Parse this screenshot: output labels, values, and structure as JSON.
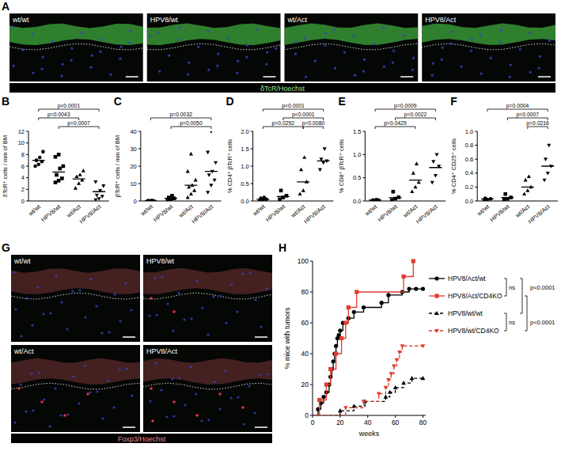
{
  "images": [
    {
      "title": "A",
      "panels": [
        "wt/wt",
        "HPV8/wt",
        "wt/Act",
        "HPV8/Act"
      ],
      "caption": "δTcR/Hoechst"
    },
    {
      "title": "G",
      "panels": [
        "wt/wt",
        "HPV8/wt",
        "wt/Act",
        "HPV8/Act"
      ],
      "caption": "Foxp3/Hoechst"
    }
  ],
  "chart_data": [
    {
      "type": "dot",
      "title": "B",
      "y_label": "δTcR⁺ cells / mm of BM",
      "color": "#000000",
      "ylim": [
        0,
        12
      ],
      "yticks": [
        0,
        2,
        4,
        6,
        8,
        10,
        12
      ],
      "series": [
        {
          "name": "wt/wt",
          "marker": "circle",
          "values": [
            6.0,
            6.3,
            6.8,
            7.0,
            7.5,
            8.5
          ],
          "mean": 7.0
        },
        {
          "name": "HPV8/wt",
          "marker": "square",
          "values": [
            3.2,
            3.5,
            3.9,
            4.5,
            5.6,
            6.0,
            7.6,
            8.0
          ],
          "mean": 5.0
        },
        {
          "name": "wt/Act",
          "marker": "triangle",
          "values": [
            2.2,
            3.0,
            3.6,
            4.2,
            4.5,
            5.2
          ],
          "mean": 3.8
        },
        {
          "name": "HPV8/Act",
          "marker": "triangle-down",
          "values": [
            0.2,
            0.4,
            0.8,
            1.0,
            1.8,
            2.6,
            3.3
          ],
          "mean": 1.6
        }
      ],
      "comparisons": [
        {
          "label": "p<0.0001",
          "from": 0,
          "to": 3
        },
        {
          "label": "p=0.0043",
          "from": 0,
          "to": 2
        },
        {
          "label": "p=0.0007",
          "from": 1,
          "to": 3
        }
      ]
    },
    {
      "type": "dot",
      "title": "C",
      "y_label": "βTcR⁺ cells / mm of BM",
      "color": "#000000",
      "ylim": [
        0,
        40
      ],
      "yticks": [
        0,
        10,
        20,
        30,
        40
      ],
      "series": [
        {
          "name": "wt/wt",
          "marker": "circle",
          "values": [
            0,
            0,
            0,
            0.2,
            0.3
          ],
          "mean": 0.1
        },
        {
          "name": "HPV8/wt",
          "marker": "square",
          "values": [
            0.5,
            1,
            1.5,
            2,
            3
          ],
          "mean": 1.5
        },
        {
          "name": "wt/Act",
          "marker": "triangle",
          "values": [
            2,
            4,
            6,
            8,
            9,
            12,
            17,
            27
          ],
          "mean": 9
        },
        {
          "name": "HPV8/Act",
          "marker": "triangle-down",
          "values": [
            5,
            9,
            12,
            15,
            17,
            22,
            28,
            40
          ],
          "mean": 17
        }
      ],
      "comparisons": [
        {
          "label": "p=0.0032",
          "from": 0,
          "to": 3
        },
        {
          "label": "p=0.0050",
          "from": 1,
          "to": 3
        }
      ]
    },
    {
      "type": "dot",
      "title": "D",
      "y_label": "% CD4⁺ βTcR⁺ cells",
      "color": "#000000",
      "ylim": [
        0,
        2
      ],
      "yticks": [
        {
          "value": 0,
          "label": "0.0"
        },
        0.5,
        {
          "value": 1,
          "label": "1.0"
        },
        1.5,
        {
          "value": 2,
          "label": "2.0"
        }
      ],
      "series": [
        {
          "name": "wt/wt",
          "marker": "circle",
          "values": [
            0.0,
            0.02,
            0.05,
            0.08,
            0.1
          ],
          "mean": 0.05
        },
        {
          "name": "HPV8/wt",
          "marker": "square",
          "values": [
            0.05,
            0.1,
            0.15,
            0.3
          ],
          "mean": 0.13
        },
        {
          "name": "wt/Act",
          "marker": "triangle",
          "values": [
            0.2,
            0.3,
            0.55,
            0.9,
            1.25
          ],
          "mean": 0.55
        },
        {
          "name": "HPV8/Act",
          "marker": "triangle-down",
          "values": [
            0.9,
            1.1,
            1.15,
            1.2,
            1.5
          ],
          "mean": 1.15
        }
      ],
      "comparisons": [
        {
          "label": "p<0.0001",
          "from": 0,
          "to": 3
        },
        {
          "label": "p<0.0001",
          "from": 1,
          "to": 3
        },
        {
          "label": "p=0.0292",
          "from": 0,
          "to": 2
        },
        {
          "label": "p=0.0080",
          "from": 2,
          "to": 3
        }
      ]
    },
    {
      "type": "dot",
      "title": "E",
      "y_label": "% CD8⁺ βTcR⁺ cells",
      "color": "#000000",
      "ylim": [
        0,
        1.5
      ],
      "yticks": [
        {
          "value": 0,
          "label": "0.0"
        },
        0.5,
        {
          "value": 1,
          "label": "1.0"
        },
        1.5
      ],
      "series": [
        {
          "name": "wt/wt",
          "marker": "circle",
          "values": [
            0.0,
            0.01,
            0.02,
            0.02,
            0.03
          ],
          "mean": 0.02
        },
        {
          "name": "HPV8/wt",
          "marker": "square",
          "values": [
            0.02,
            0.05,
            0.08,
            0.2
          ],
          "mean": 0.07
        },
        {
          "name": "wt/Act",
          "marker": "triangle",
          "values": [
            0.2,
            0.3,
            0.4,
            0.6,
            0.8
          ],
          "mean": 0.45
        },
        {
          "name": "HPV8/Act",
          "marker": "triangle-down",
          "values": [
            0.4,
            0.55,
            0.75,
            0.85,
            1.0
          ],
          "mean": 0.72
        }
      ],
      "comparisons": [
        {
          "label": "p=0.0009",
          "from": 0,
          "to": 3
        },
        {
          "label": "p=0.0022",
          "from": 1,
          "to": 3
        },
        {
          "label": "p=0.0429",
          "from": 0,
          "to": 2
        }
      ]
    },
    {
      "type": "dot",
      "title": "F",
      "y_label": "% CD4⁺ CD25⁺ cells",
      "color": "#000000",
      "ylim": [
        0,
        1
      ],
      "yticks": [
        {
          "value": 0,
          "label": "0.0"
        },
        0.2,
        0.4,
        0.6,
        0.8,
        {
          "value": 1,
          "label": "1.0"
        }
      ],
      "series": [
        {
          "name": "wt/wt",
          "marker": "circle",
          "values": [
            0,
            0.02,
            0.03,
            0.04
          ],
          "mean": 0.03
        },
        {
          "name": "HPV8/wt",
          "marker": "square",
          "values": [
            0.02,
            0.03,
            0.05,
            0.1
          ],
          "mean": 0.05
        },
        {
          "name": "wt/Act",
          "marker": "triangle",
          "values": [
            0.1,
            0.15,
            0.2,
            0.3,
            0.35
          ],
          "mean": 0.2
        },
        {
          "name": "HPV8/Act",
          "marker": "triangle-down",
          "values": [
            0.3,
            0.4,
            0.5,
            0.6,
            0.8
          ],
          "mean": 0.5
        }
      ],
      "comparisons": [
        {
          "label": "p=0.0004",
          "from": 0,
          "to": 3
        },
        {
          "label": "p=0.0007",
          "from": 1,
          "to": 3
        },
        {
          "label": "p=0.0216",
          "from": 2,
          "to": 3
        }
      ]
    },
    {
      "type": "line",
      "title": "H",
      "x_label": "weeks",
      "y_label": "% mice with tumors",
      "xlim": [
        0,
        82
      ],
      "xticks": [
        0,
        20,
        40,
        60,
        80
      ],
      "ylim": [
        0,
        100
      ],
      "yticks": [
        0,
        20,
        40,
        60,
        80,
        100
      ],
      "legend": "right",
      "series": [
        {
          "name": "HPV8/Act/wt",
          "color": "#000000",
          "marker": "circle",
          "line_style": "solid",
          "x": [
            4,
            6,
            8,
            10,
            12,
            13,
            14,
            15,
            16,
            17,
            18,
            19,
            20,
            22,
            26,
            30,
            37,
            50,
            55,
            65,
            70,
            75,
            80
          ],
          "values": [
            4,
            8,
            12,
            15,
            20,
            25,
            30,
            35,
            40,
            45,
            50,
            52,
            55,
            60,
            63,
            67,
            70,
            73,
            78,
            80,
            82,
            82,
            82
          ]
        },
        {
          "name": "HPV8/Act/CD4KO",
          "color": "#e03c31",
          "marker": "square",
          "line_style": "solid",
          "x": [
            5,
            10,
            13,
            17,
            21,
            24,
            26,
            32,
            66,
            73
          ],
          "values": [
            10,
            20,
            30,
            40,
            50,
            60,
            70,
            80,
            90,
            100
          ]
        },
        {
          "name": "HPV8/wt/wt",
          "color": "#000000",
          "marker": "triangle",
          "line_style": "dashed",
          "x": [
            20,
            30,
            38,
            53,
            56,
            60,
            66,
            72,
            80
          ],
          "values": [
            3,
            6,
            9,
            12,
            15,
            18,
            21,
            24,
            24
          ]
        },
        {
          "name": "HPV8/wt/CD4KO",
          "color": "#e03c31",
          "marker": "triangle-down",
          "line_style": "dashed",
          "x": [
            24,
            37,
            48,
            53,
            55,
            57,
            59,
            61,
            63,
            65,
            80
          ],
          "values": [
            5,
            9,
            14,
            18,
            23,
            27,
            32,
            36,
            41,
            45,
            45
          ]
        }
      ],
      "comparisons": [
        {
          "label": "ns",
          "from": 0,
          "to": 1
        },
        {
          "label": "p<0.0001",
          "from": 0,
          "to": 2
        },
        {
          "label": "p<0.0001",
          "from": 1,
          "to": 3
        },
        {
          "label": "ns",
          "from": 2,
          "to": 3
        }
      ]
    }
  ]
}
